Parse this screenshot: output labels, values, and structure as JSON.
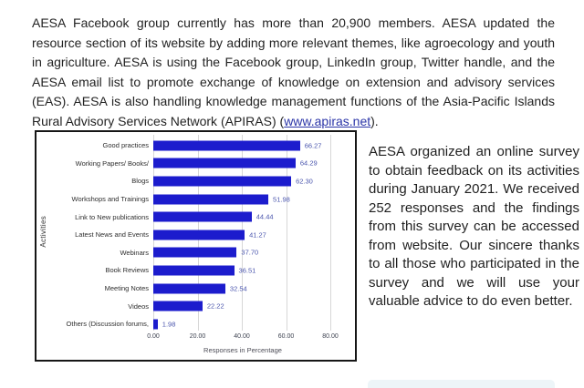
{
  "intro_paragraph": {
    "before_link": "AESA Facebook group currently has more than 20,900 members. AESA updated the resource section of its website by adding more relevant themes, like agroecology and youth in agriculture. AESA is using the Facebook group, LinkedIn group, Twitter handle, and the AESA email list to promote exchange of knowledge on extension and advisory services (EAS). AESA is also handling knowledge management functions of the Asia-Pacific Islands Rural Advisory Services Network (APIRAS) (",
    "link_text": "www.apiras.net",
    "after_link": ")."
  },
  "side_paragraph": "AESA organized an online survey to obtain feedback on its activities during January 2021. We received 252 responses and the findings from this survey can be accessed from website. Our sincere thanks to all those who participated in the survey and we will use your valuable advice to do even better.",
  "chart_data": {
    "type": "bar",
    "orientation": "horizontal",
    "categories": [
      "Good practices",
      "Working Papers/ Books/",
      "Blogs",
      "Workshops and Trainings",
      "Link to New publications",
      "Latest News and Events",
      "Webinars",
      "Book Reviews",
      "Meeting Notes",
      "Videos",
      "Others (Discussion forums,"
    ],
    "values": [
      66.27,
      64.29,
      62.3,
      51.98,
      44.44,
      41.27,
      37.7,
      36.51,
      32.54,
      22.22,
      1.98
    ],
    "value_labels": [
      "66.27",
      "64.29",
      "62.30",
      "51.98",
      "44.44",
      "41.27",
      "37.70",
      "36.51",
      "32.54",
      "22.22",
      "1.98"
    ],
    "xlabel": "Responses in Percentage",
    "ylabel": "Activities",
    "xlim": [
      0,
      90
    ],
    "xticks": [
      0,
      20,
      40,
      60,
      80
    ],
    "xtick_labels": [
      "0.00",
      "20.00",
      "40.00",
      "60.00",
      "80.00"
    ],
    "grid": true,
    "legend": "none",
    "bar_color": "#1c1ccd",
    "value_label_color": "#4a55ad"
  },
  "colors": {
    "link": "#2b35a8",
    "body_text": "#232323",
    "chart_border": "#161616",
    "gridline": "#d7d7d7",
    "cutoff_panel": "#edf5f8"
  }
}
